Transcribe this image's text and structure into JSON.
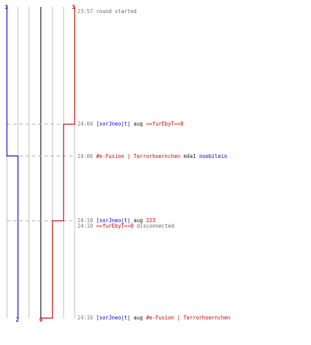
{
  "colors": {
    "blue": "#0000cc",
    "red": "#cc0000",
    "text_dark": "#222222",
    "text_gray": "#666666",
    "time_gray": "#777777",
    "grid": "#bbbbbb",
    "center": "#444444",
    "dash": "#aaaaaa"
  },
  "team_labels": {
    "top_blue": "3",
    "top_red": "3",
    "bottom_blue": "2",
    "bottom_red": "0"
  },
  "events": [
    {
      "time": "23:57",
      "parts": [
        {
          "text": "round started",
          "color": "gray"
        }
      ]
    },
    {
      "time": "24:04",
      "parts": [
        {
          "text": "[sorJneo|t|",
          "color": "blue"
        },
        {
          "text": "aug",
          "color": "dark"
        },
        {
          "text": "==furEbyT==8",
          "color": "red"
        }
      ]
    },
    {
      "time": "24:06",
      "parts": [
        {
          "text": "#e-Fusion | Terrorhoernchen",
          "color": "red"
        },
        {
          "text": "m4a1",
          "color": "dark"
        },
        {
          "text": "noobilein",
          "color": "blue"
        }
      ]
    },
    {
      "time": "24:10",
      "parts": [
        {
          "text": "[sorJneo|t|",
          "color": "blue"
        },
        {
          "text": "aug",
          "color": "dark"
        },
        {
          "text": "223",
          "color": "red"
        }
      ]
    },
    {
      "time": "24:10",
      "parts": [
        {
          "text": "==furEbyT==8",
          "color": "red"
        },
        {
          "text": "disconnected",
          "color": "gray"
        }
      ]
    },
    {
      "time": "24:16",
      "parts": [
        {
          "text": "[sorJneo|t|",
          "color": "blue"
        },
        {
          "text": "aug",
          "color": "dark"
        },
        {
          "text": "#e-Fusion | Terrorhoernchen",
          "color": "red"
        }
      ]
    }
  ]
}
